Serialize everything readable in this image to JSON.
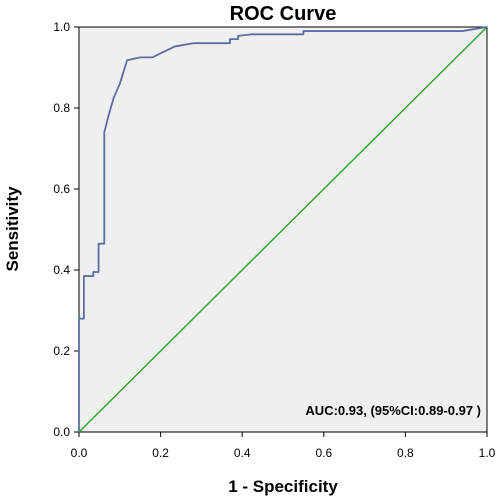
{
  "chart_data": {
    "type": "line",
    "title": "ROC Curve",
    "xlabel": "1 - Specificity",
    "ylabel": "Sensitivity",
    "xlim": [
      0.0,
      1.0
    ],
    "ylim": [
      0.0,
      1.0
    ],
    "x_ticks": [
      "0.0",
      "0.2",
      "0.4",
      "0.6",
      "0.8",
      "1.0"
    ],
    "y_ticks": [
      "0.0",
      "0.2",
      "0.4",
      "0.6",
      "0.8",
      "1.0"
    ],
    "grid": false,
    "annotation": "AUC:0.93, (95%CI:0.89-0.97 )",
    "series": [
      {
        "color": "#5a6ea1",
        "x": [
          0.0,
          0.0,
          0.012,
          0.012,
          0.035,
          0.035,
          0.048,
          0.048,
          0.062,
          0.062,
          0.072,
          0.085,
          0.1,
          0.118,
          0.15,
          0.18,
          0.2,
          0.235,
          0.28,
          0.37,
          0.37,
          0.39,
          0.39,
          0.425,
          0.46,
          0.55,
          0.55,
          0.7,
          0.94,
          1.0
        ],
        "y": [
          0.0,
          0.28,
          0.28,
          0.385,
          0.385,
          0.395,
          0.395,
          0.465,
          0.465,
          0.74,
          0.78,
          0.825,
          0.86,
          0.918,
          0.925,
          0.925,
          0.935,
          0.952,
          0.96,
          0.96,
          0.97,
          0.97,
          0.978,
          0.982,
          0.982,
          0.982,
          0.99,
          0.99,
          0.99,
          1.0
        ]
      },
      {
        "color": "#2ca02c",
        "x": [
          0.0,
          1.0
        ],
        "y": [
          0.0,
          1.0
        ]
      }
    ]
  }
}
